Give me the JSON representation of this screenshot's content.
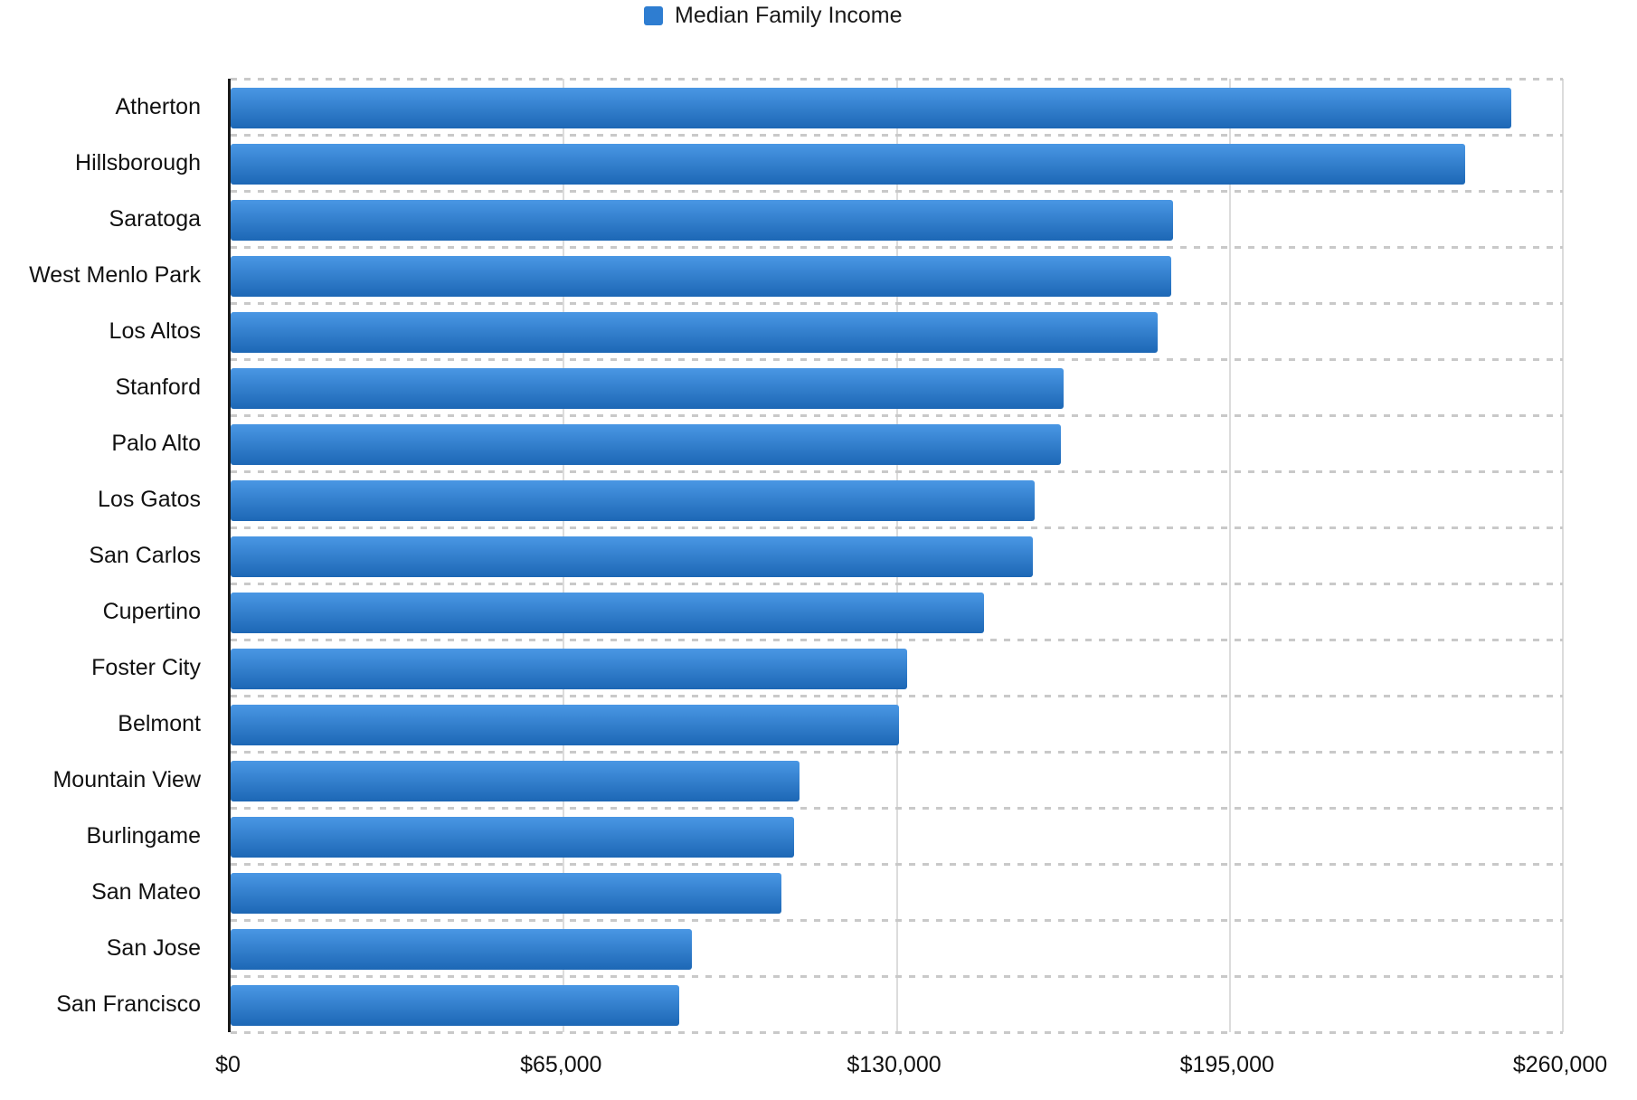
{
  "legend": {
    "label": "Median Family Income",
    "swatch_color": "#2e7dd1"
  },
  "chart_data": {
    "type": "bar",
    "orientation": "horizontal",
    "title": "",
    "legend_entries": [
      "Median Family Income"
    ],
    "legend_position": "top-center",
    "categories": [
      "Atherton",
      "Hillsborough",
      "Saratoga",
      "West Menlo Park",
      "Los Altos",
      "Stanford",
      "Palo Alto",
      "Los Gatos",
      "San Carlos",
      "Cupertino",
      "Foster City",
      "Belmont",
      "Mountain View",
      "Burlingame",
      "San Mateo",
      "San Jose",
      "San Francisco"
    ],
    "series": [
      {
        "name": "Median Family Income",
        "values": [
          250000,
          241000,
          184000,
          183500,
          181000,
          162500,
          162000,
          157000,
          156500,
          147000,
          132000,
          130500,
          111000,
          110000,
          107500,
          90000,
          87500
        ]
      }
    ],
    "xlabel": "",
    "ylabel": "",
    "xlim": [
      0,
      260000
    ],
    "x_tick_values": [
      0,
      65000,
      130000,
      195000,
      260000
    ],
    "x_tick_labels": [
      "$0",
      "$65,000",
      "$130,000",
      "$195,000",
      "$260,000"
    ],
    "grid": "horizontal dashed gridlines between rows, solid vertical lines at x ticks",
    "bar_color_top": "#4a97e4",
    "bar_color_bottom": "#1d67b5",
    "gridline_dash_color": "#c9c9c9",
    "gridline_vertical_color": "#dcdcdc",
    "axis_line_color": "#1a1a1a",
    "text_color": "#111111"
  }
}
